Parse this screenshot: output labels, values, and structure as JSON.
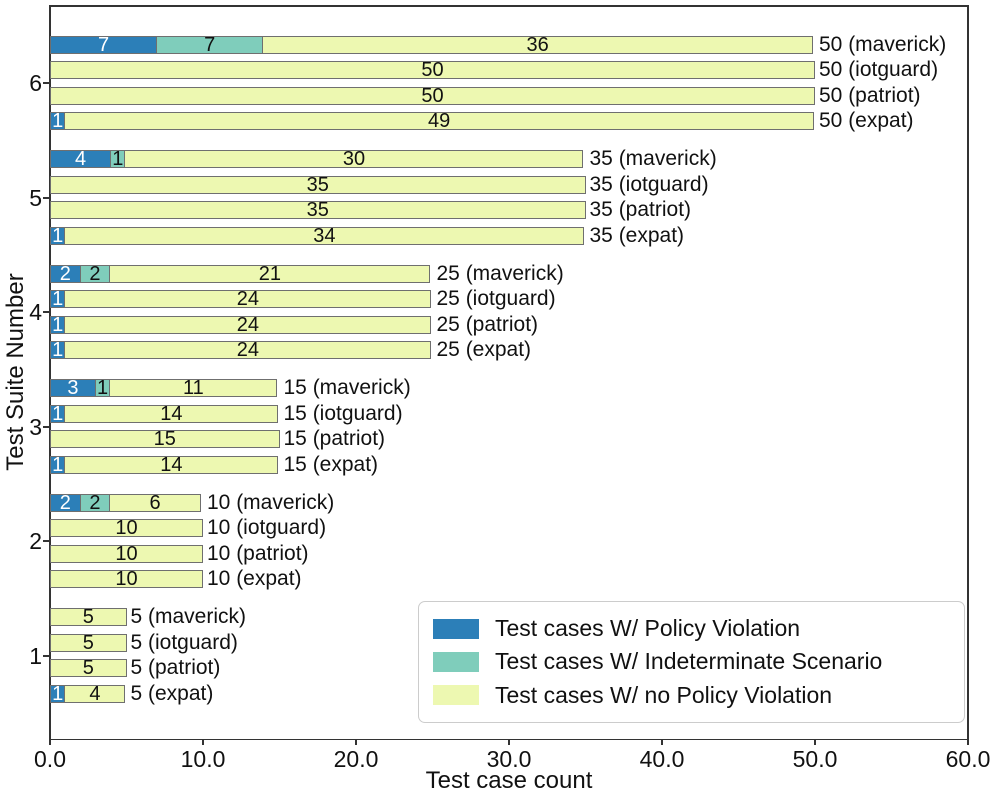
{
  "chart_data": {
    "type": "bar",
    "orientation": "horizontal",
    "stacked": true,
    "grid": false,
    "title": "",
    "xlabel": "Test case count",
    "ylabel": "Test Suite Number",
    "xlim": [
      0,
      60
    ],
    "xticks": [
      {
        "value": 0,
        "label": "0.0"
      },
      {
        "value": 10,
        "label": "10.0"
      },
      {
        "value": 20,
        "label": "20.0"
      },
      {
        "value": 30,
        "label": "30.0"
      },
      {
        "value": 40,
        "label": "40.0"
      },
      {
        "value": 50,
        "label": "50.0"
      },
      {
        "value": 60,
        "label": "60.0"
      }
    ],
    "series": [
      {
        "name": "Test cases W/ Policy Violation",
        "color": "#2c7fb8",
        "label_color": "#ffffff"
      },
      {
        "name": "Test cases W/ Indeterminate Scenario",
        "color": "#7fcdbb",
        "label_color": "#111111"
      },
      {
        "name": "Test cases W/ no Policy Violation",
        "color": "#edf8b1",
        "label_color": "#111111"
      }
    ],
    "legend_position": "lower right",
    "groups": [
      {
        "suite": "6",
        "bars": [
          {
            "name": "maverick",
            "values": [
              7,
              7,
              36
            ],
            "total": 50,
            "end_label": "50 (maverick)"
          },
          {
            "name": "iotguard",
            "values": [
              0,
              0,
              50
            ],
            "total": 50,
            "end_label": "50 (iotguard)"
          },
          {
            "name": "patriot",
            "values": [
              0,
              0,
              50
            ],
            "total": 50,
            "end_label": "50 (patriot)"
          },
          {
            "name": "expat",
            "values": [
              1,
              0,
              49
            ],
            "total": 50,
            "end_label": "50 (expat)"
          }
        ]
      },
      {
        "suite": "5",
        "bars": [
          {
            "name": "maverick",
            "values": [
              4,
              1,
              30
            ],
            "total": 35,
            "end_label": "35 (maverick)"
          },
          {
            "name": "iotguard",
            "values": [
              0,
              0,
              35
            ],
            "total": 35,
            "end_label": "35 (iotguard)"
          },
          {
            "name": "patriot",
            "values": [
              0,
              0,
              35
            ],
            "total": 35,
            "end_label": "35 (patriot)"
          },
          {
            "name": "expat",
            "values": [
              1,
              0,
              34
            ],
            "total": 35,
            "end_label": "35 (expat)"
          }
        ]
      },
      {
        "suite": "4",
        "bars": [
          {
            "name": "maverick",
            "values": [
              2,
              2,
              21
            ],
            "total": 25,
            "end_label": "25 (maverick)"
          },
          {
            "name": "iotguard",
            "values": [
              1,
              0,
              24
            ],
            "total": 25,
            "end_label": "25 (iotguard)"
          },
          {
            "name": "patriot",
            "values": [
              1,
              0,
              24
            ],
            "total": 25,
            "end_label": "25 (patriot)"
          },
          {
            "name": "expat",
            "values": [
              1,
              0,
              24
            ],
            "total": 25,
            "end_label": "25 (expat)"
          }
        ]
      },
      {
        "suite": "3",
        "bars": [
          {
            "name": "maverick",
            "values": [
              3,
              1,
              11
            ],
            "total": 15,
            "end_label": "15 (maverick)"
          },
          {
            "name": "iotguard",
            "values": [
              1,
              0,
              14
            ],
            "total": 15,
            "end_label": "15 (iotguard)"
          },
          {
            "name": "patriot",
            "values": [
              0,
              0,
              15
            ],
            "total": 15,
            "end_label": "15 (patriot)"
          },
          {
            "name": "expat",
            "values": [
              1,
              0,
              14
            ],
            "total": 15,
            "end_label": "15 (expat)"
          }
        ]
      },
      {
        "suite": "2",
        "bars": [
          {
            "name": "maverick",
            "values": [
              2,
              2,
              6
            ],
            "total": 10,
            "end_label": "10 (maverick)"
          },
          {
            "name": "iotguard",
            "values": [
              0,
              0,
              10
            ],
            "total": 10,
            "end_label": "10 (iotguard)"
          },
          {
            "name": "patriot",
            "values": [
              0,
              0,
              10
            ],
            "total": 10,
            "end_label": "10 (patriot)"
          },
          {
            "name": "expat",
            "values": [
              0,
              0,
              10
            ],
            "total": 10,
            "end_label": "10 (expat)"
          }
        ]
      },
      {
        "suite": "1",
        "bars": [
          {
            "name": "maverick",
            "values": [
              0,
              0,
              5
            ],
            "total": 5,
            "end_label": "5 (maverick)"
          },
          {
            "name": "iotguard",
            "values": [
              0,
              0,
              5
            ],
            "total": 5,
            "end_label": "5 (iotguard)"
          },
          {
            "name": "patriot",
            "values": [
              0,
              0,
              5
            ],
            "total": 5,
            "end_label": "5 (patriot)"
          },
          {
            "name": "expat",
            "values": [
              1,
              0,
              4
            ],
            "total": 5,
            "end_label": "5 (expat)"
          }
        ]
      }
    ]
  }
}
